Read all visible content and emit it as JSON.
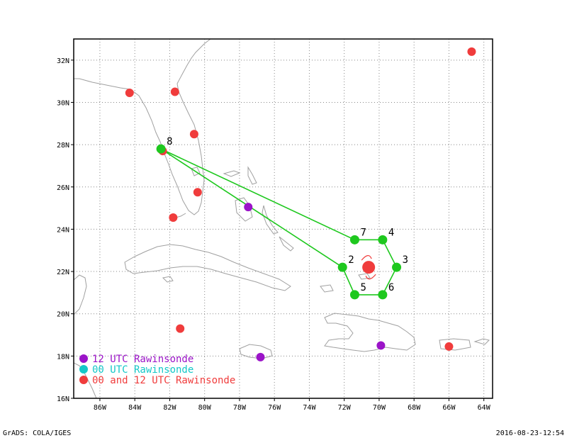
{
  "map": {
    "lon_range": [
      -87.5,
      -63.5
    ],
    "lat_range": [
      16,
      33
    ],
    "lon_ticks": [
      "86W",
      "84W",
      "82W",
      "80W",
      "78W",
      "76W",
      "74W",
      "72W",
      "70W",
      "68W",
      "66W",
      "64W"
    ],
    "lat_ticks": [
      "16N",
      "18N",
      "20N",
      "22N",
      "24N",
      "26N",
      "28N",
      "30N",
      "32N"
    ],
    "grid": true,
    "coast_color": "#a0a0a0",
    "flight_color": "#1ec81e"
  },
  "flight_points": [
    {
      "label": "8",
      "lon": -82.5,
      "lat": 27.8
    },
    {
      "label": "7",
      "lon": -71.4,
      "lat": 23.5
    },
    {
      "label": "4",
      "lon": -69.8,
      "lat": 23.5
    },
    {
      "label": "2",
      "lon": -72.1,
      "lat": 22.2
    },
    {
      "label": "3",
      "lon": -69.0,
      "lat": 22.2
    },
    {
      "label": "5",
      "lon": -71.4,
      "lat": 20.9
    },
    {
      "label": "6",
      "lon": -69.8,
      "lat": 20.9
    }
  ],
  "flight_path": [
    "8",
    "7",
    "4",
    "3",
    "6",
    "5",
    "2",
    "8"
  ],
  "storm_center": {
    "lon": -70.6,
    "lat": 22.2
  },
  "rawinsondes": [
    {
      "type": "12",
      "lon": -77.5,
      "lat": 25.05
    },
    {
      "type": "12",
      "lon": -76.8,
      "lat": 17.95
    },
    {
      "type": "12",
      "lon": -69.9,
      "lat": 18.5
    },
    {
      "type": "00and12",
      "lon": -84.3,
      "lat": 30.45
    },
    {
      "type": "00and12",
      "lon": -81.7,
      "lat": 30.5
    },
    {
      "type": "00and12",
      "lon": -80.6,
      "lat": 28.5
    },
    {
      "type": "00and12",
      "lon": -82.4,
      "lat": 27.7
    },
    {
      "type": "00and12",
      "lon": -80.4,
      "lat": 25.75
    },
    {
      "type": "00and12",
      "lon": -81.8,
      "lat": 24.55
    },
    {
      "type": "00and12",
      "lon": -81.4,
      "lat": 19.3
    },
    {
      "type": "00and12",
      "lon": -66.0,
      "lat": 18.45
    },
    {
      "type": "00and12",
      "lon": -64.7,
      "lat": 32.4
    }
  ],
  "legend": [
    {
      "label": "12 UTC Rawinsonde",
      "color": "#9b14c8"
    },
    {
      "label": "00 UTC Rawinsonde",
      "color": "#14c8c8"
    },
    {
      "label": "00 and 12 UTC Rawinsonde",
      "color": "#f03c3c"
    }
  ],
  "colors": {
    "12": "#9b14c8",
    "00": "#14c8c8",
    "00and12": "#f03c3c",
    "storm": "#f03c3c"
  },
  "footer": {
    "left": "GrADS: COLA/IGES",
    "right": "2016-08-23-12:54"
  }
}
